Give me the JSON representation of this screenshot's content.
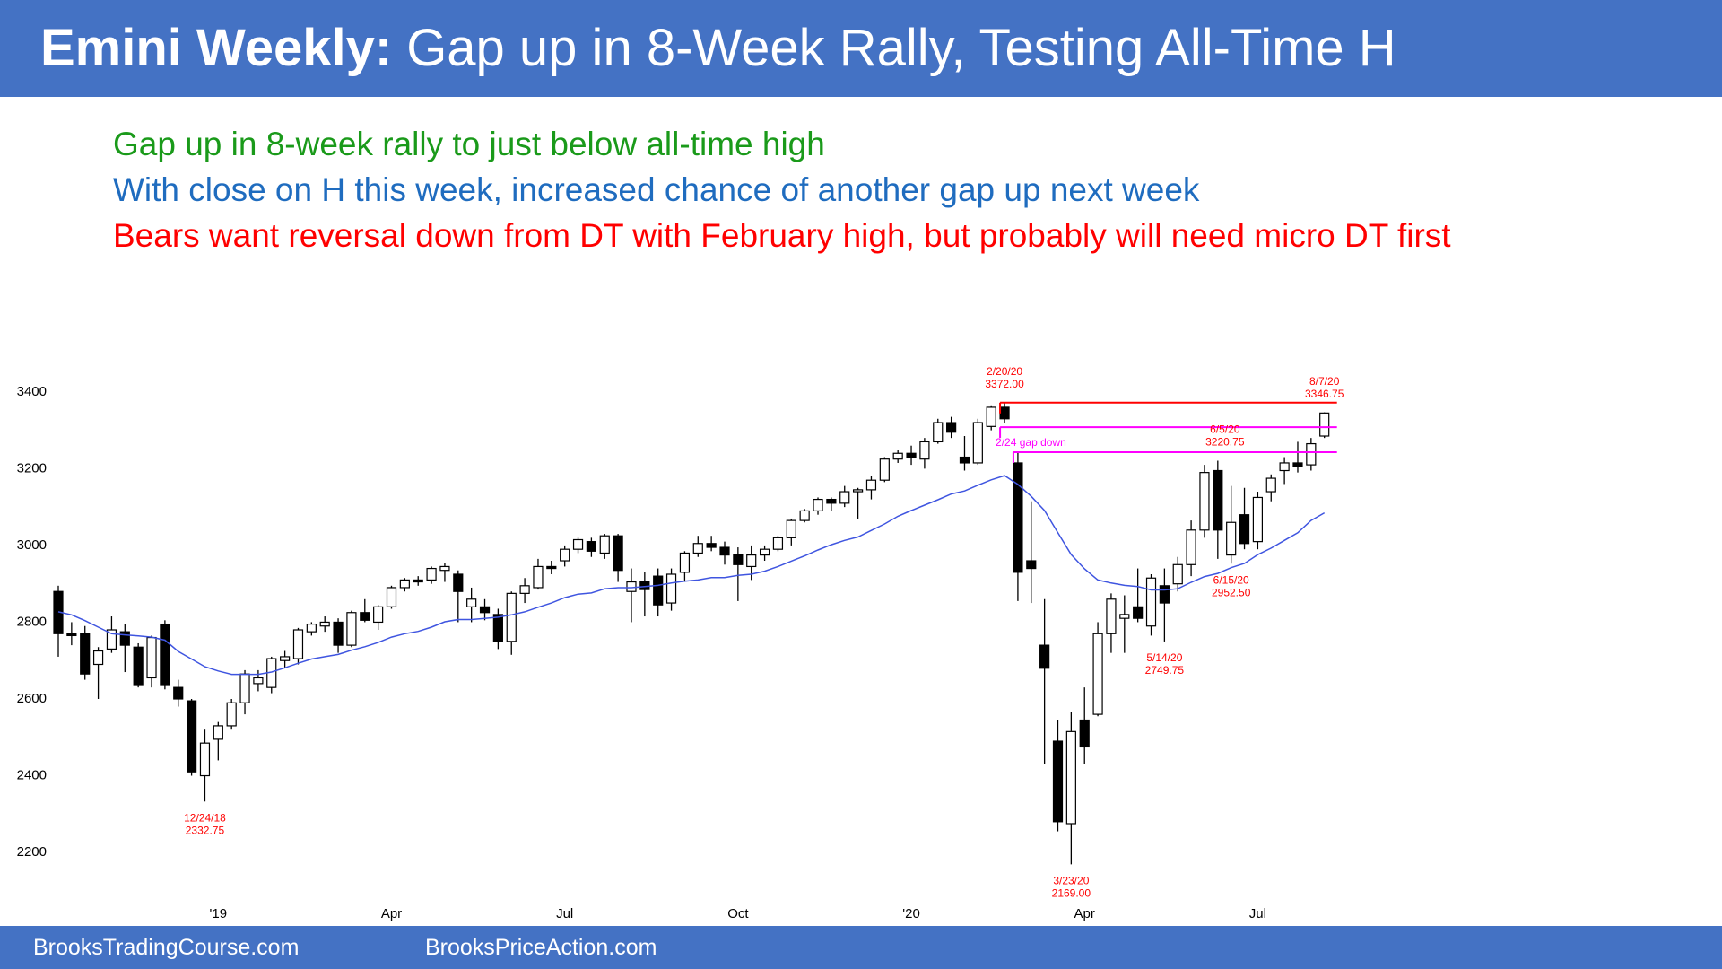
{
  "header": {
    "title_bold": "Emini Weekly:",
    "title_rest": "Gap up in 8-Week Rally, Testing All-Time H"
  },
  "notes": [
    {
      "text": "Gap up in 8-week rally to just below all-time high",
      "color": "#1a9a1a"
    },
    {
      "text": "With close on H this week, increased chance of another gap up next week",
      "color": "#1f6cbf"
    },
    {
      "text": "Bears want reversal down from DT with February high, but probably will need micro DT first",
      "color": "#ff0000"
    }
  ],
  "footer": {
    "left": "BrooksTradingCourse.com",
    "right": "BrooksPriceAction.com"
  },
  "chart_data": {
    "type": "candlestick",
    "categories": [
      null,
      null,
      null,
      null,
      null,
      null,
      null,
      null,
      null,
      null,
      null,
      null,
      "'19",
      null,
      null,
      null,
      null,
      null,
      null,
      null,
      null,
      null,
      null,
      null,
      null,
      "Apr",
      null,
      null,
      null,
      null,
      null,
      null,
      null,
      null,
      null,
      null,
      null,
      null,
      "Jul",
      null,
      null,
      null,
      null,
      null,
      null,
      null,
      null,
      null,
      null,
      null,
      null,
      "Oct",
      null,
      null,
      null,
      null,
      null,
      null,
      null,
      null,
      null,
      null,
      null,
      null,
      "'20",
      null,
      null,
      null,
      null,
      null,
      null,
      null,
      null,
      null,
      null,
      null,
      null,
      "Apr",
      null,
      null,
      null,
      null,
      null,
      null,
      null,
      null,
      null,
      null,
      null,
      null,
      "Jul",
      null,
      null,
      null,
      null,
      null
    ],
    "open": [
      2880,
      2770,
      2770,
      2690,
      2730,
      2775,
      2735,
      2655,
      2795,
      2630,
      2595,
      2400,
      2495,
      2530,
      2590,
      2640,
      2630,
      2700,
      2705,
      2775,
      2790,
      2800,
      2740,
      2825,
      2800,
      2840,
      2890,
      2905,
      2910,
      2935,
      2925,
      2840,
      2840,
      2820,
      2750,
      2875,
      2890,
      2945,
      2960,
      2990,
      3010,
      2980,
      3025,
      2880,
      2905,
      2920,
      2850,
      2930,
      2980,
      3005,
      2995,
      2975,
      2945,
      2975,
      2990,
      3020,
      3065,
      3090,
      3120,
      3110,
      3140,
      3145,
      3170,
      3225,
      3240,
      3225,
      3270,
      3320,
      3230,
      3215,
      3310,
      3360,
      3215,
      2960,
      2740,
      2490,
      2275,
      2545,
      2560,
      2770,
      2810,
      2840,
      2790,
      2895,
      2900,
      2950,
      3040,
      3195,
      2975,
      3080,
      3010,
      3140,
      3195,
      3215,
      3210,
      3285
    ],
    "high": [
      2895,
      2800,
      2790,
      2735,
      2815,
      2795,
      2745,
      2765,
      2805,
      2650,
      2600,
      2520,
      2540,
      2600,
      2675,
      2675,
      2710,
      2725,
      2785,
      2800,
      2815,
      2810,
      2830,
      2860,
      2845,
      2895,
      2915,
      2920,
      2945,
      2955,
      2935,
      2890,
      2860,
      2835,
      2880,
      2915,
      2965,
      2960,
      3000,
      3020,
      3020,
      3030,
      3030,
      2940,
      2930,
      2940,
      2940,
      2985,
      3025,
      3025,
      3010,
      2995,
      3000,
      3000,
      3025,
      3070,
      3095,
      3125,
      3125,
      3155,
      3150,
      3180,
      3230,
      3250,
      3260,
      3280,
      3330,
      3335,
      3285,
      3330,
      3365,
      3372,
      3245,
      3115,
      2860,
      2545,
      2565,
      2630,
      2800,
      2875,
      2870,
      2940,
      2925,
      2940,
      2970,
      3065,
      3210,
      3220.75,
      3155,
      3150,
      3140,
      3185,
      3230,
      3270,
      3280,
      3346.75
    ],
    "low": [
      2710,
      2740,
      2650,
      2600,
      2720,
      2670,
      2630,
      2630,
      2625,
      2580,
      2400,
      2332.75,
      2440,
      2520,
      2560,
      2620,
      2615,
      2680,
      2690,
      2765,
      2775,
      2720,
      2735,
      2800,
      2780,
      2835,
      2880,
      2895,
      2900,
      2905,
      2800,
      2800,
      2805,
      2730,
      2715,
      2850,
      2885,
      2925,
      2945,
      2980,
      2970,
      2965,
      2905,
      2800,
      2815,
      2815,
      2830,
      2905,
      2970,
      2985,
      2950,
      2855,
      2910,
      2960,
      2985,
      3000,
      3060,
      3080,
      3090,
      3100,
      3070,
      3120,
      3165,
      3215,
      3210,
      3200,
      3265,
      3280,
      3195,
      3210,
      3300,
      3320,
      2855,
      2850,
      2430,
      2255,
      2169,
      2430,
      2555,
      2720,
      2720,
      2800,
      2765,
      2749.75,
      2880,
      2920,
      3020,
      2965,
      2952.5,
      2990,
      2990,
      3115,
      3160,
      3190,
      3195,
      3280
    ],
    "close": [
      2770,
      2765,
      2665,
      2725,
      2780,
      2740,
      2635,
      2760,
      2635,
      2600,
      2410,
      2485,
      2530,
      2590,
      2665,
      2655,
      2705,
      2710,
      2780,
      2795,
      2800,
      2740,
      2825,
      2805,
      2840,
      2890,
      2910,
      2910,
      2940,
      2945,
      2880,
      2860,
      2825,
      2750,
      2875,
      2895,
      2945,
      2940,
      2990,
      3015,
      2985,
      3025,
      2935,
      2905,
      2885,
      2845,
      2925,
      2980,
      3005,
      2995,
      2975,
      2950,
      2975,
      2990,
      3020,
      3065,
      3090,
      3120,
      3110,
      3140,
      3145,
      3170,
      3225,
      3240,
      3230,
      3270,
      3320,
      3295,
      3215,
      3320,
      3360,
      3330,
      2930,
      2940,
      2680,
      2280,
      2515,
      2475,
      2770,
      2860,
      2820,
      2810,
      2915,
      2850,
      2950,
      3040,
      3190,
      3040,
      3060,
      3005,
      3125,
      3175,
      3215,
      3205,
      3265,
      3345
    ],
    "up_color": "#ffffff",
    "down_color": "#000000",
    "edge_color": "#000000",
    "ma": {
      "color": "#3f55e0",
      "values": [
        2827,
        2819,
        2804,
        2787,
        2770,
        2767,
        2764,
        2761,
        2753,
        2724,
        2704,
        2684,
        2673,
        2664,
        2664,
        2664,
        2670,
        2681,
        2693,
        2704,
        2710,
        2716,
        2727,
        2736,
        2747,
        2761,
        2770,
        2776,
        2787,
        2801,
        2807,
        2807,
        2810,
        2813,
        2819,
        2827,
        2839,
        2850,
        2864,
        2873,
        2876,
        2887,
        2890,
        2890,
        2893,
        2896,
        2902,
        2907,
        2910,
        2916,
        2916,
        2922,
        2925,
        2933,
        2945,
        2959,
        2973,
        2988,
        3002,
        3013,
        3022,
        3039,
        3056,
        3076,
        3091,
        3105,
        3119,
        3134,
        3142,
        3157,
        3171,
        3182,
        3159,
        3128,
        3091,
        3033,
        2976,
        2939,
        2910,
        2902,
        2896,
        2893,
        2884,
        2884,
        2887,
        2904,
        2919,
        2927,
        2942,
        2953,
        2976,
        2993,
        3013,
        3033,
        3065,
        3085
      ]
    },
    "levels": [
      {
        "value": 3372,
        "color": "#ff0000"
      },
      {
        "value": 3308,
        "color": "#ff00ff"
      },
      {
        "value": 3243,
        "color": "#ff00ff",
        "label": "2/24 gap down"
      }
    ],
    "annotations": [
      {
        "date": "12/24/18",
        "price": "2332.75",
        "color": "#ff0000"
      },
      {
        "date": "2/20/20",
        "price": "3372.00",
        "color": "#ff0000"
      },
      {
        "date": "3/23/20",
        "price": "2169.00",
        "color": "#ff0000"
      },
      {
        "date": "5/14/20",
        "price": "2749.75",
        "color": "#ff0000"
      },
      {
        "date": "6/5/20",
        "price": "3220.75",
        "color": "#ff0000"
      },
      {
        "date": "6/15/20",
        "price": "2952.50",
        "color": "#ff0000"
      },
      {
        "date": "8/7/20",
        "price": "3346.75",
        "color": "#ff0000"
      }
    ],
    "ylim": [
      2130,
      3430
    ],
    "yticks": [
      2200,
      2400,
      2600,
      2800,
      3000,
      3200,
      3400
    ],
    "grid": false
  }
}
